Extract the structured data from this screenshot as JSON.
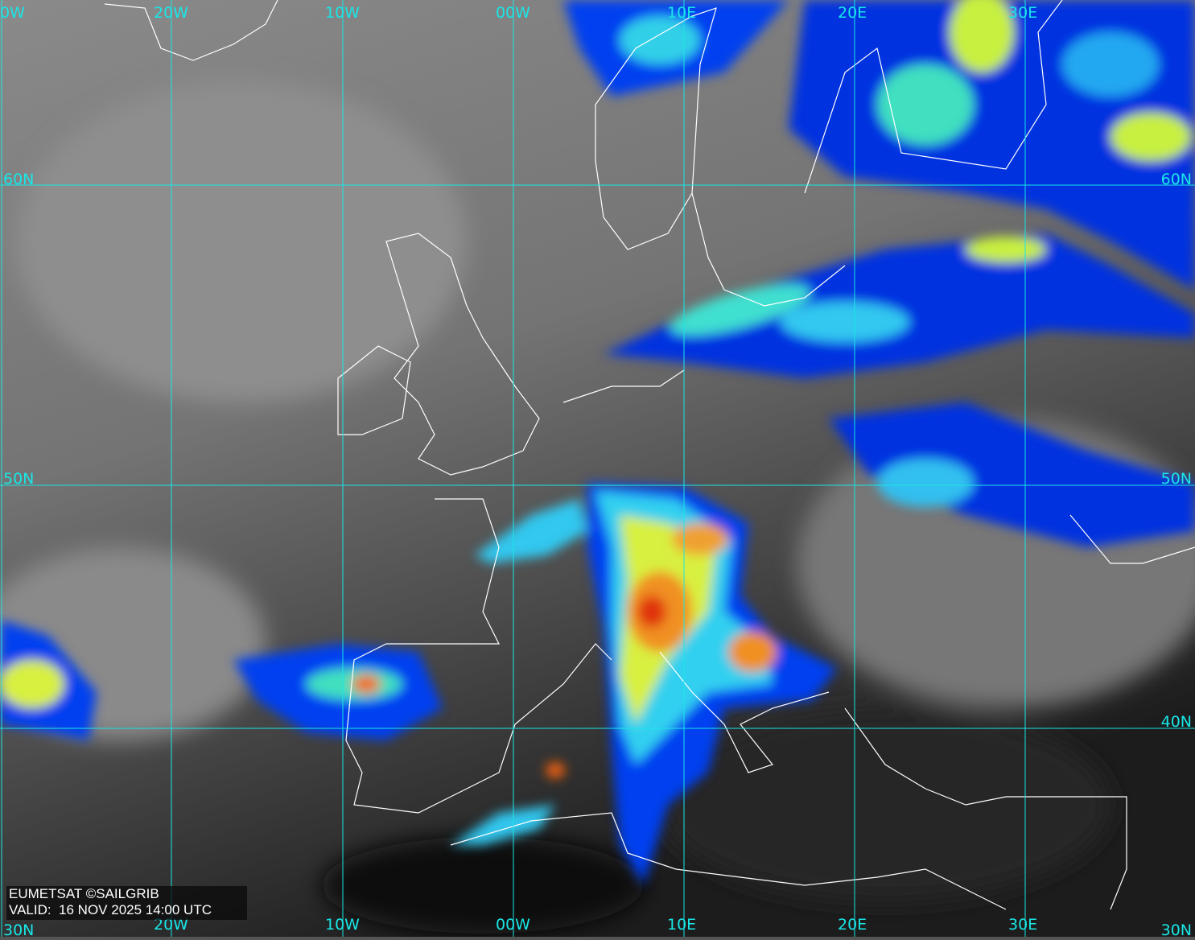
{
  "map": {
    "source": "EUMETSAT ©SAILGRIB",
    "valid_label": "VALID:",
    "valid_time": "16 NOV 2025 14:00 UTC",
    "top_longitude_labels": [
      "0W",
      "20W",
      "10W",
      "00W",
      "10E",
      "20E",
      "30E"
    ],
    "bottom_longitude_labels": [
      "20W",
      "10W",
      "00W",
      "10E",
      "20E",
      "30E"
    ],
    "left_latitude_labels": [
      "60N",
      "50N",
      "30N"
    ],
    "right_latitude_labels": [
      "60N",
      "50N",
      "40N",
      "30N"
    ],
    "grid_color": "#19e6e6",
    "colors": {
      "cold_top_blue": "#0030e0",
      "cyan": "#00c8ff",
      "yellow_green": "#d8f040",
      "orange": "#f09020",
      "red": "#e03010",
      "cloud_gray": "#9a9a9a",
      "sea_dark": "#1a1a1a"
    }
  }
}
